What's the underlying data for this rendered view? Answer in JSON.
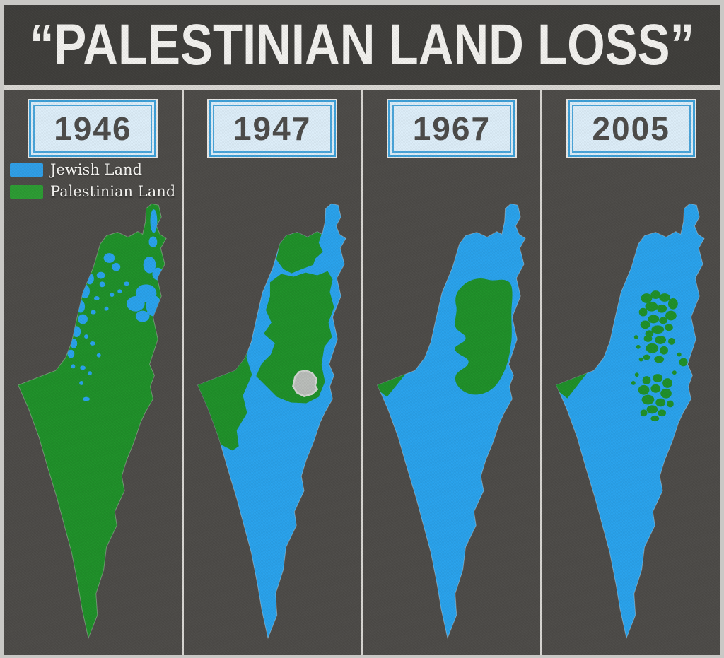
{
  "title": "“PALESTINIAN LAND LOSS”",
  "years": [
    "1946",
    "1947",
    "1967",
    "2005"
  ],
  "legend": [
    {
      "label": "Jewish Land",
      "color": "#2f9fe8"
    },
    {
      "label": "Palestinian Land",
      "color": "#2c9c33"
    }
  ],
  "colors": {
    "jewish_land_map": "#29a2ec",
    "palestinian_land_map": "#1f9029",
    "jerusalem_enclave": "#b9bdb9",
    "background": "#4d4b48",
    "title_band": "#3f3e3b",
    "frame": "#c9c8c5",
    "year_box_fill": "#ddeef9",
    "year_box_border": "#3da0d8",
    "title_text": "#f3f2ef"
  },
  "maps": [
    {
      "year": "1946",
      "jewish_land": "small scattered patches along the coast and in the north",
      "palestinian_land": "vast majority of the territory"
    },
    {
      "year": "1947",
      "jewish_land": "large areas: eastern Galilee, coastal plain and Negev desert",
      "palestinian_land": "western Galilee, central highlands and southwestern coastal region",
      "jerusalem": "neutral gray enclave in the center"
    },
    {
      "year": "1967",
      "jewish_land": "almost all territory",
      "palestinian_land": "West Bank block and Gaza strip"
    },
    {
      "year": "2005",
      "jewish_land": "almost all territory",
      "palestinian_land": "fragmented West Bank patches and Gaza strip"
    }
  ]
}
